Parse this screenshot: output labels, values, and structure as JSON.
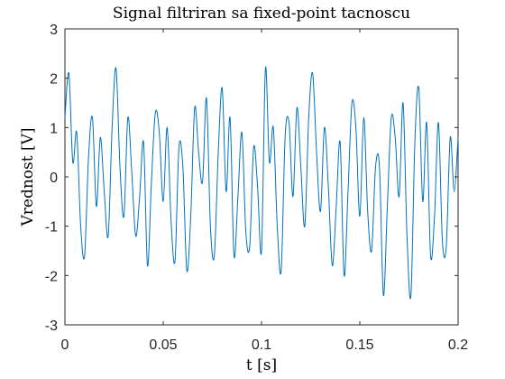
{
  "chart_data": {
    "type": "line",
    "title": "Signal filtriran sa fixed-point tacnoscu",
    "xlabel": "t [s]",
    "ylabel": "Vrednost [V]",
    "xlim": [
      0,
      0.2
    ],
    "ylim": [
      -3,
      3
    ],
    "xticks": [
      0,
      0.05,
      0.1,
      0.15,
      0.2
    ],
    "xtick_labels": [
      "0",
      "0.05",
      "0.1",
      "0.15",
      "0.2"
    ],
    "yticks": [
      -3,
      -2,
      -1,
      0,
      1,
      2,
      3
    ],
    "ytick_labels": [
      "-3",
      "-2",
      "-1",
      "0",
      "1",
      "2",
      "3"
    ],
    "grid": false,
    "line_color": "#0072BD",
    "series": [
      {
        "x": [
          0,
          0.002,
          0.004,
          0.006,
          0.008,
          0.01,
          0.012,
          0.014,
          0.016,
          0.018,
          0.02,
          0.022,
          0.024,
          0.026,
          0.028,
          0.03,
          0.032,
          0.034,
          0.036,
          0.038,
          0.04,
          0.042,
          0.044,
          0.046,
          0.048,
          0.05,
          0.052,
          0.054,
          0.056,
          0.058,
          0.06,
          0.062,
          0.064,
          0.066,
          0.068,
          0.07,
          0.072,
          0.074,
          0.076,
          0.078,
          0.08,
          0.082,
          0.084,
          0.086,
          0.088,
          0.09,
          0.092,
          0.094,
          0.096,
          0.098,
          0.1,
          0.102,
          0.104,
          0.106,
          0.108,
          0.11,
          0.112,
          0.114,
          0.116,
          0.118,
          0.12,
          0.122,
          0.124,
          0.126,
          0.128,
          0.13,
          0.132,
          0.134,
          0.136,
          0.138,
          0.14,
          0.142,
          0.144,
          0.146,
          0.148,
          0.15,
          0.152,
          0.154,
          0.156,
          0.158,
          0.16,
          0.162,
          0.164,
          0.166,
          0.168,
          0.17,
          0.172,
          0.174,
          0.176,
          0.178,
          0.18,
          0.182,
          0.184,
          0.186,
          0.188,
          0.19,
          0.192,
          0.194,
          0.196,
          0.198,
          0.2
        ],
        "values": [
          1.2,
          2.1,
          0.3,
          0.9,
          -1.0,
          -1.6,
          0.4,
          1.2,
          -0.6,
          0.8,
          -0.3,
          -1.2,
          1.0,
          2.2,
          0.2,
          -0.8,
          1.2,
          0.1,
          -1.2,
          -0.4,
          0.7,
          -1.8,
          -0.1,
          1.3,
          0.9,
          -0.5,
          1.0,
          -0.9,
          -1.7,
          0.6,
          0.2,
          -1.9,
          -0.8,
          1.4,
          0.5,
          -0.1,
          1.6,
          -1.0,
          -1.6,
          0.5,
          1.8,
          -0.3,
          1.2,
          -1.6,
          -0.4,
          0.9,
          -1.1,
          -1.4,
          0.6,
          -0.2,
          -1.5,
          2.2,
          0.3,
          1.0,
          -1.0,
          -1.9,
          0.8,
          1.1,
          -0.4,
          1.4,
          0.2,
          -1.0,
          1.2,
          2.1,
          0.5,
          -0.7,
          1.0,
          -0.2,
          -1.8,
          -0.6,
          0.7,
          -2.0,
          -0.3,
          1.5,
          1.0,
          -0.8,
          1.2,
          -0.7,
          -1.5,
          0.2,
          0.2,
          -2.4,
          -0.6,
          1.2,
          0.8,
          -0.4,
          1.5,
          -1.2,
          -2.4,
          0.7,
          1.8,
          -0.5,
          1.1,
          -1.6,
          -0.8,
          1.1,
          -1.3,
          -1.4,
          0.8,
          -0.3,
          0.8
        ]
      }
    ]
  }
}
